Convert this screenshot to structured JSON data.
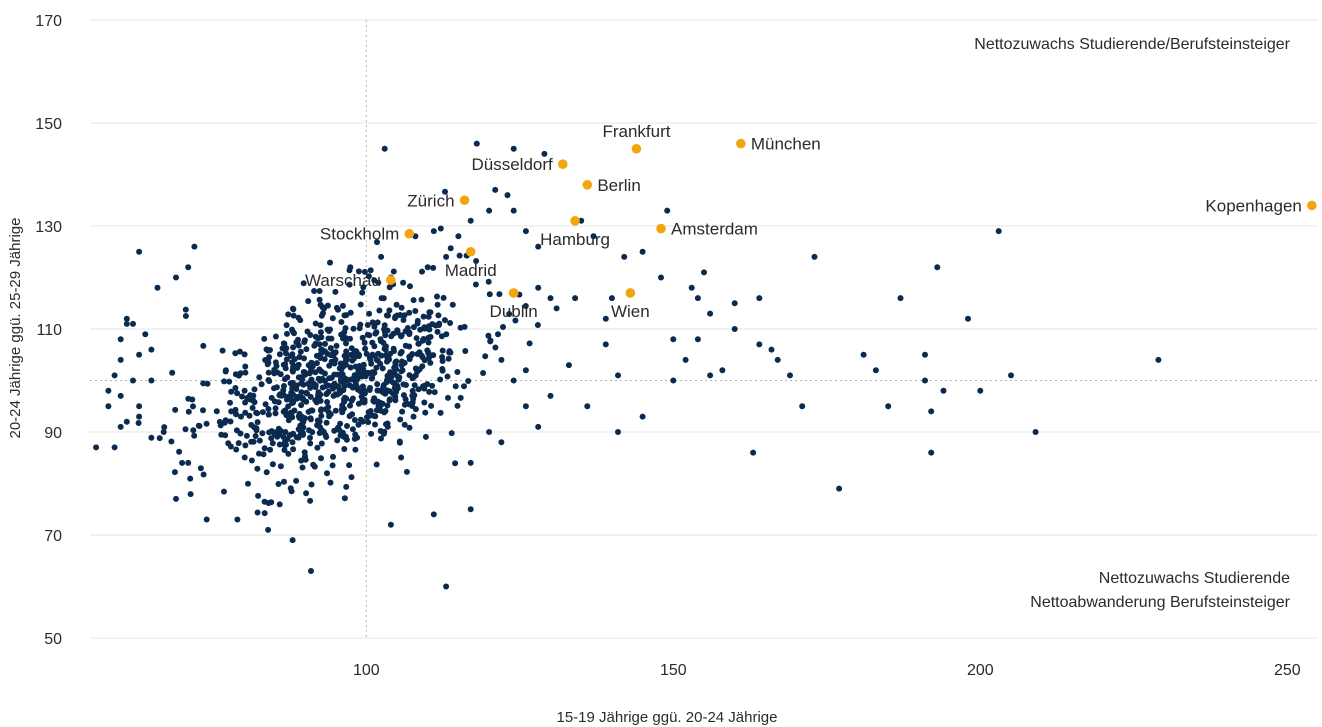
{
  "chart_data": {
    "type": "scatter",
    "title": "",
    "xlabel": "15-19 Jährige ggü. 20-24 Jährige",
    "ylabel": "20-24 Jährige ggü. 25-29 Jährige",
    "xlim": [
      55,
      255
    ],
    "ylim": [
      50,
      170
    ],
    "xticks": [
      100,
      150,
      200,
      250
    ],
    "yticks": [
      50,
      70,
      90,
      110,
      130,
      150,
      170
    ],
    "reference_lines": {
      "x": 100,
      "y": 100
    },
    "grid": "horizontal",
    "colors": {
      "points": "#0b2a4f",
      "highlight": "#f2a60d",
      "text": "#2b2b2b"
    },
    "quadrant_labels": [
      {
        "lines": [
          "Nettozuwachs Studierende/Berufsteinsteiger"
        ],
        "position": "top-right"
      },
      {
        "lines": [
          "Nettozuwachs Studierende",
          "Nettoabwanderung Berufsteinsteiger"
        ],
        "position": "bottom-right"
      }
    ],
    "highlighted": [
      {
        "name": "Kopenhagen",
        "x": 254,
        "y": 134,
        "label_side": "left"
      },
      {
        "name": "München",
        "x": 161,
        "y": 146,
        "label_side": "right"
      },
      {
        "name": "Frankfurt",
        "x": 144,
        "y": 145,
        "label_side": "above"
      },
      {
        "name": "Düsseldorf",
        "x": 132,
        "y": 142,
        "label_side": "left"
      },
      {
        "name": "Berlin",
        "x": 136,
        "y": 138,
        "label_side": "right"
      },
      {
        "name": "Zürich",
        "x": 116,
        "y": 135,
        "label_side": "left"
      },
      {
        "name": "Amsterdam",
        "x": 148,
        "y": 129.5,
        "label_side": "right"
      },
      {
        "name": "Hamburg",
        "x": 134,
        "y": 131,
        "label_side": "below"
      },
      {
        "name": "Stockholm",
        "x": 107,
        "y": 128.5,
        "label_side": "left"
      },
      {
        "name": "Madrid",
        "x": 117,
        "y": 125,
        "label_side": "below"
      },
      {
        "name": "Warschau",
        "x": 104,
        "y": 119.5,
        "label_side": "left"
      },
      {
        "name": "Dublin",
        "x": 124,
        "y": 117,
        "label_side": "below"
      },
      {
        "name": "Wien",
        "x": 143,
        "y": 117,
        "label_side": "below"
      }
    ],
    "regions": [
      {
        "cx": 96,
        "cy": 100,
        "sx": 11,
        "sy": 8.5,
        "n": 900,
        "seed": 11
      }
    ],
    "scattered_points": [
      [
        56,
        87
      ],
      [
        58,
        98
      ],
      [
        103,
        145
      ],
      [
        111,
        129
      ],
      [
        118,
        146
      ],
      [
        124,
        145
      ],
      [
        129,
        144
      ],
      [
        108,
        128
      ],
      [
        104,
        120
      ],
      [
        106,
        119
      ],
      [
        110,
        122
      ],
      [
        113,
        124
      ],
      [
        115,
        128
      ],
      [
        117,
        131
      ],
      [
        120,
        133
      ],
      [
        121,
        137
      ],
      [
        123,
        136
      ],
      [
        124,
        133
      ],
      [
        126,
        129
      ],
      [
        128,
        126
      ],
      [
        128,
        118
      ],
      [
        130,
        116
      ],
      [
        131,
        114
      ],
      [
        134,
        116
      ],
      [
        135,
        131
      ],
      [
        137,
        128
      ],
      [
        139,
        112
      ],
      [
        139,
        107
      ],
      [
        140,
        116
      ],
      [
        141,
        101
      ],
      [
        142,
        124
      ],
      [
        145,
        125
      ],
      [
        149,
        133
      ],
      [
        148,
        120
      ],
      [
        150,
        108
      ],
      [
        150,
        100
      ],
      [
        152,
        104
      ],
      [
        153,
        118
      ],
      [
        154,
        116
      ],
      [
        155,
        121
      ],
      [
        154,
        108
      ],
      [
        156,
        113
      ],
      [
        156,
        101
      ],
      [
        158,
        102
      ],
      [
        160,
        110
      ],
      [
        160,
        115
      ],
      [
        164,
        107
      ],
      [
        164,
        116
      ],
      [
        166,
        106
      ],
      [
        167,
        104
      ],
      [
        169,
        101
      ],
      [
        171,
        95
      ],
      [
        173,
        124
      ],
      [
        177,
        79
      ],
      [
        181,
        105
      ],
      [
        183,
        102
      ],
      [
        185,
        95
      ],
      [
        187,
        116
      ],
      [
        191,
        100
      ],
      [
        191,
        105
      ],
      [
        192,
        86
      ],
      [
        192,
        94
      ],
      [
        193,
        122
      ],
      [
        194,
        98
      ],
      [
        198,
        112
      ],
      [
        200,
        98
      ],
      [
        203,
        129
      ],
      [
        205,
        101
      ],
      [
        209,
        90
      ],
      [
        229,
        104
      ],
      [
        163,
        86
      ],
      [
        145,
        93
      ],
      [
        141,
        90
      ],
      [
        136,
        95
      ],
      [
        133,
        103
      ],
      [
        130,
        97
      ],
      [
        128,
        91
      ],
      [
        126,
        95
      ],
      [
        126,
        102
      ],
      [
        124,
        100
      ],
      [
        122,
        104
      ],
      [
        122,
        88
      ],
      [
        120,
        90
      ],
      [
        117,
        84
      ],
      [
        117,
        75
      ],
      [
        111,
        74
      ],
      [
        104,
        72
      ],
      [
        113,
        60
      ],
      [
        91,
        63
      ],
      [
        88,
        69
      ],
      [
        84,
        71
      ],
      [
        79,
        73
      ],
      [
        74,
        73
      ],
      [
        69,
        77
      ],
      [
        71,
        84
      ],
      [
        70,
        84
      ],
      [
        67,
        90
      ],
      [
        63,
        95
      ],
      [
        65,
        100
      ],
      [
        63,
        105
      ],
      [
        60,
        104
      ],
      [
        61,
        112
      ],
      [
        62,
        111
      ],
      [
        63,
        125
      ],
      [
        66,
        118
      ],
      [
        69,
        120
      ],
      [
        71,
        122
      ],
      [
        65,
        106
      ],
      [
        62,
        100
      ],
      [
        61,
        92
      ],
      [
        60,
        91
      ],
      [
        72,
        126
      ],
      [
        64,
        109
      ],
      [
        63,
        93
      ],
      [
        60,
        97
      ],
      [
        59,
        87
      ],
      [
        58,
        95
      ],
      [
        59,
        101
      ],
      [
        60,
        108
      ],
      [
        61,
        111
      ]
    ]
  }
}
